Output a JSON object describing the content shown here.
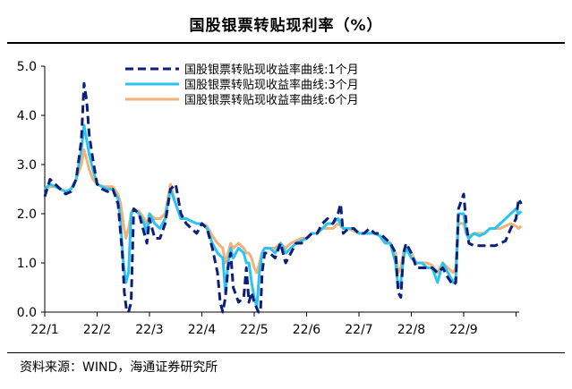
{
  "title": "国股银票转贴现利率（%）",
  "source": "资料来源：WIND，海通证券研究所",
  "chart_data": {
    "type": "line",
    "title": "国股银票转贴现利率（%）",
    "xlabel": "",
    "ylabel": "",
    "ylim": [
      0,
      5
    ],
    "yticks": [
      "0.0",
      "1.0",
      "2.0",
      "3.0",
      "4.0",
      "5.0"
    ],
    "xticks": [
      "22/1",
      "22/2",
      "22/3",
      "22/4",
      "22/5",
      "22/6",
      "22/7",
      "22/8",
      "22/9"
    ],
    "xlim": [
      0,
      9.3
    ],
    "series": [
      {
        "name": "国股银票转贴现收益率曲线:1个月",
        "color": "#0B1F7A",
        "dash": "9,5",
        "width": 3,
        "points": [
          [
            0.0,
            2.35
          ],
          [
            0.1,
            2.7
          ],
          [
            0.2,
            2.6
          ],
          [
            0.3,
            2.5
          ],
          [
            0.4,
            2.4
          ],
          [
            0.5,
            2.45
          ],
          [
            0.6,
            2.7
          ],
          [
            0.7,
            3.5
          ],
          [
            0.75,
            4.65
          ],
          [
            0.8,
            4.3
          ],
          [
            0.85,
            3.6
          ],
          [
            0.92,
            3.1
          ],
          [
            1.0,
            2.6
          ],
          [
            1.1,
            2.5
          ],
          [
            1.2,
            2.45
          ],
          [
            1.3,
            2.5
          ],
          [
            1.4,
            2.2
          ],
          [
            1.48,
            1.2
          ],
          [
            1.52,
            0.4
          ],
          [
            1.56,
            0.05
          ],
          [
            1.6,
            0.0
          ],
          [
            1.65,
            0.2
          ],
          [
            1.7,
            2.1
          ],
          [
            1.8,
            2.0
          ],
          [
            1.9,
            1.6
          ],
          [
            1.95,
            1.4
          ],
          [
            2.0,
            1.9
          ],
          [
            2.1,
            1.5
          ],
          [
            2.2,
            1.5
          ],
          [
            2.3,
            1.8
          ],
          [
            2.4,
            2.5
          ],
          [
            2.5,
            2.6
          ],
          [
            2.6,
            2.0
          ],
          [
            2.7,
            1.8
          ],
          [
            2.8,
            1.7
          ],
          [
            2.9,
            1.6
          ],
          [
            3.0,
            1.8
          ],
          [
            3.1,
            1.7
          ],
          [
            3.2,
            1.3
          ],
          [
            3.3,
            0.8
          ],
          [
            3.35,
            0.2
          ],
          [
            3.4,
            0.0
          ],
          [
            3.45,
            0.3
          ],
          [
            3.5,
            0.9
          ],
          [
            3.55,
            1.2
          ],
          [
            3.6,
            0.5
          ],
          [
            3.7,
            0.2
          ],
          [
            3.8,
            0.3
          ],
          [
            3.85,
            0.9
          ],
          [
            3.9,
            0.2
          ],
          [
            3.95,
            0.4
          ],
          [
            4.0,
            0.2
          ],
          [
            4.08,
            0.0
          ],
          [
            4.12,
            0.0
          ],
          [
            4.15,
            0.8
          ],
          [
            4.2,
            1.2
          ],
          [
            4.3,
            1.2
          ],
          [
            4.4,
            1.1
          ],
          [
            4.5,
            1.4
          ],
          [
            4.6,
            1.0
          ],
          [
            4.7,
            1.2
          ],
          [
            4.8,
            1.4
          ],
          [
            4.9,
            1.4
          ],
          [
            5.0,
            1.5
          ],
          [
            5.1,
            1.6
          ],
          [
            5.2,
            1.6
          ],
          [
            5.3,
            1.8
          ],
          [
            5.4,
            1.9
          ],
          [
            5.5,
            1.8
          ],
          [
            5.6,
            2.0
          ],
          [
            5.65,
            2.2
          ],
          [
            5.7,
            1.6
          ],
          [
            5.8,
            1.7
          ],
          [
            5.9,
            1.7
          ],
          [
            6.0,
            1.6
          ],
          [
            6.1,
            1.6
          ],
          [
            6.2,
            1.7
          ],
          [
            6.3,
            1.6
          ],
          [
            6.4,
            1.6
          ],
          [
            6.5,
            1.5
          ],
          [
            6.6,
            1.4
          ],
          [
            6.7,
            1.2
          ],
          [
            6.75,
            0.4
          ],
          [
            6.8,
            0.3
          ],
          [
            6.85,
            1.2
          ],
          [
            6.9,
            1.4
          ],
          [
            7.0,
            1.2
          ],
          [
            7.1,
            0.9
          ],
          [
            7.2,
            0.9
          ],
          [
            7.3,
            0.9
          ],
          [
            7.4,
            0.9
          ],
          [
            7.5,
            0.8
          ],
          [
            7.6,
            0.9
          ],
          [
            7.7,
            0.7
          ],
          [
            7.8,
            0.55
          ],
          [
            7.85,
            0.6
          ],
          [
            7.9,
            2.1
          ],
          [
            8.0,
            2.4
          ],
          [
            8.05,
            1.8
          ],
          [
            8.1,
            1.4
          ],
          [
            8.2,
            1.35
          ],
          [
            8.4,
            1.35
          ],
          [
            8.6,
            1.35
          ],
          [
            8.8,
            1.45
          ],
          [
            8.9,
            1.7
          ],
          [
            9.0,
            1.9
          ],
          [
            9.05,
            2.3
          ],
          [
            9.1,
            2.2
          ]
        ]
      },
      {
        "name": "国股银票转贴现收益率曲线:3个月",
        "color": "#29C5F0",
        "dash": "",
        "width": 3,
        "points": [
          [
            0.0,
            2.5
          ],
          [
            0.1,
            2.6
          ],
          [
            0.2,
            2.55
          ],
          [
            0.3,
            2.5
          ],
          [
            0.4,
            2.45
          ],
          [
            0.5,
            2.5
          ],
          [
            0.6,
            2.7
          ],
          [
            0.7,
            3.3
          ],
          [
            0.75,
            3.8
          ],
          [
            0.8,
            3.5
          ],
          [
            0.85,
            3.2
          ],
          [
            0.92,
            2.9
          ],
          [
            1.0,
            2.6
          ],
          [
            1.1,
            2.55
          ],
          [
            1.2,
            2.5
          ],
          [
            1.3,
            2.5
          ],
          [
            1.4,
            2.3
          ],
          [
            1.45,
            1.8
          ],
          [
            1.5,
            1.0
          ],
          [
            1.55,
            0.6
          ],
          [
            1.6,
            0.8
          ],
          [
            1.65,
            2.0
          ],
          [
            1.7,
            2.1
          ],
          [
            1.8,
            2.0
          ],
          [
            1.9,
            1.8
          ],
          [
            1.95,
            1.6
          ],
          [
            2.0,
            2.0
          ],
          [
            2.1,
            1.8
          ],
          [
            2.2,
            1.7
          ],
          [
            2.3,
            1.9
          ],
          [
            2.4,
            2.5
          ],
          [
            2.5,
            2.2
          ],
          [
            2.6,
            1.9
          ],
          [
            2.7,
            1.9
          ],
          [
            2.8,
            1.85
          ],
          [
            2.9,
            1.8
          ],
          [
            3.0,
            1.8
          ],
          [
            3.1,
            1.7
          ],
          [
            3.2,
            1.4
          ],
          [
            3.3,
            1.2
          ],
          [
            3.4,
            1.1
          ],
          [
            3.45,
            0.4
          ],
          [
            3.5,
            1.0
          ],
          [
            3.55,
            1.3
          ],
          [
            3.6,
            1.1
          ],
          [
            3.7,
            1.3
          ],
          [
            3.8,
            1.2
          ],
          [
            3.85,
            1.0
          ],
          [
            3.9,
            1.0
          ],
          [
            3.95,
            0.6
          ],
          [
            4.0,
            0.3
          ],
          [
            4.05,
            0.1
          ],
          [
            4.1,
            0.8
          ],
          [
            4.15,
            1.2
          ],
          [
            4.2,
            1.3
          ],
          [
            4.3,
            1.3
          ],
          [
            4.4,
            1.2
          ],
          [
            4.5,
            1.4
          ],
          [
            4.6,
            1.2
          ],
          [
            4.7,
            1.3
          ],
          [
            4.8,
            1.4
          ],
          [
            4.9,
            1.45
          ],
          [
            5.0,
            1.5
          ],
          [
            5.1,
            1.6
          ],
          [
            5.2,
            1.6
          ],
          [
            5.3,
            1.7
          ],
          [
            5.4,
            1.8
          ],
          [
            5.5,
            1.8
          ],
          [
            5.6,
            1.9
          ],
          [
            5.7,
            1.7
          ],
          [
            5.8,
            1.7
          ],
          [
            5.9,
            1.7
          ],
          [
            6.0,
            1.6
          ],
          [
            6.1,
            1.6
          ],
          [
            6.2,
            1.6
          ],
          [
            6.3,
            1.6
          ],
          [
            6.4,
            1.55
          ],
          [
            6.5,
            1.4
          ],
          [
            6.6,
            1.4
          ],
          [
            6.7,
            1.0
          ],
          [
            6.75,
            0.5
          ],
          [
            6.8,
            0.6
          ],
          [
            6.85,
            1.1
          ],
          [
            6.9,
            1.3
          ],
          [
            7.0,
            1.1
          ],
          [
            7.1,
            1.0
          ],
          [
            7.2,
            1.0
          ],
          [
            7.3,
            0.9
          ],
          [
            7.4,
            0.9
          ],
          [
            7.5,
            0.6
          ],
          [
            7.6,
            1.0
          ],
          [
            7.7,
            0.8
          ],
          [
            7.8,
            0.6
          ],
          [
            7.85,
            0.7
          ],
          [
            7.9,
            2.0
          ],
          [
            8.0,
            2.0
          ],
          [
            8.05,
            1.6
          ],
          [
            8.1,
            1.5
          ],
          [
            8.2,
            1.6
          ],
          [
            8.3,
            1.55
          ],
          [
            8.4,
            1.6
          ],
          [
            8.5,
            1.7
          ],
          [
            8.6,
            1.7
          ],
          [
            8.7,
            1.8
          ],
          [
            8.8,
            1.9
          ],
          [
            8.9,
            2.0
          ],
          [
            9.0,
            2.1
          ],
          [
            9.05,
            2.0
          ],
          [
            9.1,
            2.05
          ]
        ]
      },
      {
        "name": "国股银票转贴现收益率曲线:6个月",
        "color": "#F0B27A",
        "dash": "",
        "width": 3,
        "points": [
          [
            0.0,
            2.5
          ],
          [
            0.1,
            2.55
          ],
          [
            0.2,
            2.55
          ],
          [
            0.3,
            2.5
          ],
          [
            0.4,
            2.45
          ],
          [
            0.5,
            2.5
          ],
          [
            0.6,
            2.7
          ],
          [
            0.7,
            3.0
          ],
          [
            0.75,
            3.3
          ],
          [
            0.8,
            3.1
          ],
          [
            0.85,
            2.9
          ],
          [
            0.92,
            2.7
          ],
          [
            1.0,
            2.6
          ],
          [
            1.1,
            2.55
          ],
          [
            1.2,
            2.55
          ],
          [
            1.3,
            2.55
          ],
          [
            1.4,
            2.4
          ],
          [
            1.45,
            2.2
          ],
          [
            1.5,
            1.8
          ],
          [
            1.55,
            1.5
          ],
          [
            1.6,
            1.7
          ],
          [
            1.65,
            2.0
          ],
          [
            1.7,
            2.1
          ],
          [
            1.8,
            2.05
          ],
          [
            1.9,
            1.9
          ],
          [
            1.95,
            1.8
          ],
          [
            2.0,
            2.0
          ],
          [
            2.1,
            1.9
          ],
          [
            2.2,
            1.9
          ],
          [
            2.3,
            2.0
          ],
          [
            2.4,
            2.6
          ],
          [
            2.5,
            2.2
          ],
          [
            2.6,
            1.9
          ],
          [
            2.7,
            1.9
          ],
          [
            2.8,
            1.85
          ],
          [
            2.9,
            1.8
          ],
          [
            3.0,
            1.8
          ],
          [
            3.1,
            1.75
          ],
          [
            3.2,
            1.55
          ],
          [
            3.3,
            1.4
          ],
          [
            3.4,
            1.3
          ],
          [
            3.45,
            1.0
          ],
          [
            3.5,
            1.2
          ],
          [
            3.55,
            1.4
          ],
          [
            3.6,
            1.3
          ],
          [
            3.7,
            1.4
          ],
          [
            3.8,
            1.3
          ],
          [
            3.85,
            1.2
          ],
          [
            3.9,
            1.2
          ],
          [
            3.95,
            1.1
          ],
          [
            4.0,
            0.9
          ],
          [
            4.05,
            0.8
          ],
          [
            4.1,
            1.0
          ],
          [
            4.15,
            1.2
          ],
          [
            4.2,
            1.3
          ],
          [
            4.3,
            1.3
          ],
          [
            4.4,
            1.3
          ],
          [
            4.5,
            1.4
          ],
          [
            4.6,
            1.3
          ],
          [
            4.7,
            1.4
          ],
          [
            4.8,
            1.45
          ],
          [
            4.9,
            1.5
          ],
          [
            5.0,
            1.5
          ],
          [
            5.1,
            1.6
          ],
          [
            5.2,
            1.6
          ],
          [
            5.3,
            1.7
          ],
          [
            5.4,
            1.7
          ],
          [
            5.5,
            1.7
          ],
          [
            5.6,
            1.8
          ],
          [
            5.7,
            1.7
          ],
          [
            5.8,
            1.7
          ],
          [
            5.9,
            1.65
          ],
          [
            6.0,
            1.6
          ],
          [
            6.1,
            1.6
          ],
          [
            6.2,
            1.6
          ],
          [
            6.3,
            1.6
          ],
          [
            6.4,
            1.55
          ],
          [
            6.5,
            1.45
          ],
          [
            6.6,
            1.4
          ],
          [
            6.7,
            1.2
          ],
          [
            6.75,
            0.8
          ],
          [
            6.8,
            0.9
          ],
          [
            6.85,
            1.2
          ],
          [
            6.9,
            1.3
          ],
          [
            7.0,
            1.2
          ],
          [
            7.1,
            1.0
          ],
          [
            7.2,
            1.0
          ],
          [
            7.3,
            1.0
          ],
          [
            7.4,
            0.95
          ],
          [
            7.5,
            0.8
          ],
          [
            7.6,
            1.0
          ],
          [
            7.7,
            0.9
          ],
          [
            7.8,
            0.8
          ],
          [
            7.85,
            0.9
          ],
          [
            7.9,
            1.8
          ],
          [
            8.0,
            1.8
          ],
          [
            8.05,
            1.6
          ],
          [
            8.1,
            1.55
          ],
          [
            8.2,
            1.6
          ],
          [
            8.3,
            1.6
          ],
          [
            8.4,
            1.6
          ],
          [
            8.5,
            1.7
          ],
          [
            8.6,
            1.7
          ],
          [
            8.7,
            1.7
          ],
          [
            8.8,
            1.75
          ],
          [
            8.9,
            1.8
          ],
          [
            9.0,
            1.75
          ],
          [
            9.05,
            1.7
          ],
          [
            9.1,
            1.75
          ]
        ]
      }
    ]
  }
}
